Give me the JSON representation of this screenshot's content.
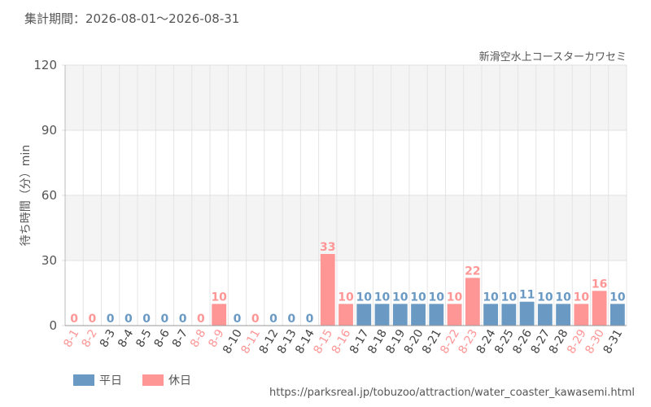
{
  "chart_data": {
    "type": "bar",
    "title": "集計期間：2026-08-01～2026-08-31",
    "subtitle": "新滑空水上コースターカワセミ",
    "y_label": "待ち時間（分）min",
    "source": "https://parksreal.jp/tobuzoo/attraction/water_coaster_kawasemi.html",
    "categories": [
      "8-1",
      "8-2",
      "8-3",
      "8-4",
      "8-5",
      "8-6",
      "8-7",
      "8-8",
      "8-9",
      "8-10",
      "8-11",
      "8-12",
      "8-13",
      "8-14",
      "8-15",
      "8-16",
      "8-17",
      "8-18",
      "8-19",
      "8-20",
      "8-21",
      "8-22",
      "8-23",
      "8-24",
      "8-25",
      "8-26",
      "8-27",
      "8-28",
      "8-29",
      "8-30",
      "8-31"
    ],
    "series": [
      {
        "name": "平日",
        "color": "#6a9ac4",
        "values": [
          null,
          null,
          0,
          0,
          0,
          0,
          0,
          null,
          null,
          0,
          null,
          0,
          0,
          0,
          null,
          null,
          10,
          10,
          10,
          10,
          10,
          null,
          null,
          10,
          10,
          11,
          10,
          10,
          null,
          null,
          10
        ]
      },
      {
        "name": "休日",
        "color": "#ff9696",
        "values": [
          0,
          0,
          null,
          null,
          null,
          null,
          null,
          0,
          10,
          null,
          0,
          null,
          null,
          null,
          33,
          10,
          null,
          null,
          null,
          null,
          null,
          10,
          22,
          null,
          null,
          null,
          null,
          null,
          10,
          16,
          null
        ]
      }
    ],
    "ylim": [
      0,
      120
    ],
    "yticks": [
      0,
      30,
      60,
      90,
      120
    ],
    "grid": true
  }
}
